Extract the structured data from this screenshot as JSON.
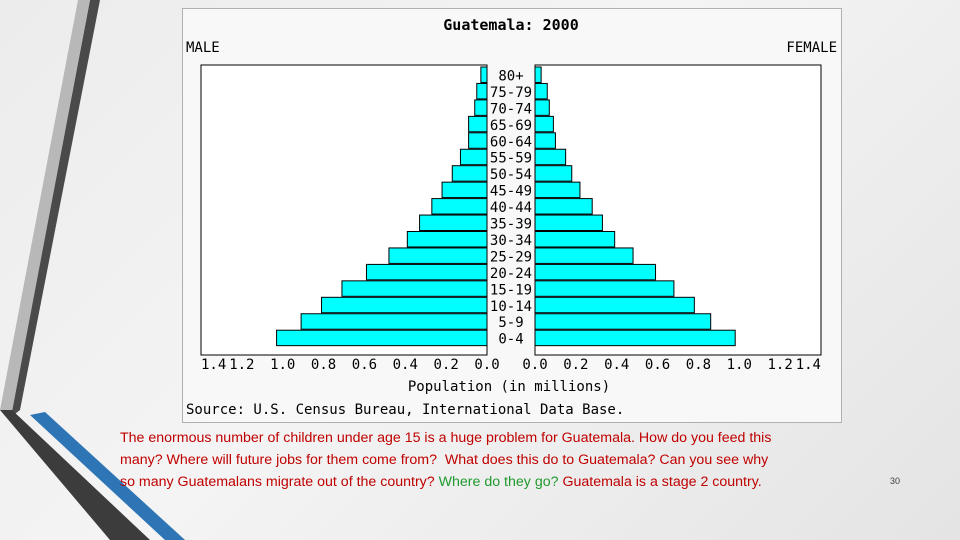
{
  "slide": {
    "caption_lines": [
      [
        {
          "text": "The enormous number of children under age 15 is a huge problem for Guatemala. How do you feed this",
          "color": "red"
        }
      ],
      [
        {
          "text": "many? Where will future jobs for them come from?  What does this do to Guatemala? Can you see why",
          "color": "red"
        }
      ],
      [
        {
          "text": "so many Guatemalans migrate out of the country? ",
          "color": "red"
        },
        {
          "text": "Where do they go? ",
          "color": "green"
        },
        {
          "text": "Guatemala is a stage 2 country.",
          "color": "red"
        }
      ]
    ],
    "page_number": "30",
    "colors": {
      "red": "#c00000",
      "green": "#1f9a2e",
      "bar_fill": "#00ffff",
      "bar_stroke": "#000000",
      "plot_bg": "#ffffff",
      "frame_bg": "#f8f8f8",
      "accent_dark": "#404040",
      "accent_blue": "#2e75b6"
    }
  },
  "chart_data": {
    "type": "bar",
    "orientation": "horizontal",
    "subtype": "population-pyramid",
    "title": "Guatemala: 2000",
    "left_label": "MALE",
    "right_label": "FEMALE",
    "xlabel": "Population (in millions)",
    "source": "Source: U.S. Census Bureau, International Data Base.",
    "categories": [
      "80+",
      "75-79",
      "70-74",
      "65-69",
      "60-64",
      "55-59",
      "50-54",
      "45-49",
      "40-44",
      "35-39",
      "30-34",
      "25-29",
      "20-24",
      "15-19",
      "10-14",
      "5-9",
      "0-4"
    ],
    "series": [
      {
        "name": "MALE",
        "values": [
          0.03,
          0.05,
          0.06,
          0.09,
          0.09,
          0.13,
          0.17,
          0.22,
          0.27,
          0.33,
          0.39,
          0.48,
          0.59,
          0.71,
          0.81,
          0.91,
          1.03
        ]
      },
      {
        "name": "FEMALE",
        "values": [
          0.03,
          0.06,
          0.07,
          0.09,
          0.1,
          0.15,
          0.18,
          0.22,
          0.28,
          0.33,
          0.39,
          0.48,
          0.59,
          0.68,
          0.78,
          0.86,
          0.98
        ]
      }
    ],
    "x_ticks_left": [
      "1.4",
      "1.2",
      "1.0",
      "0.8",
      "0.6",
      "0.4",
      "0.2",
      "0.0"
    ],
    "x_ticks_right": [
      "0.0",
      "0.2",
      "0.4",
      "0.6",
      "0.8",
      "1.0",
      "1.2",
      "1.4"
    ],
    "xlim": [
      0,
      1.4
    ],
    "grid": false,
    "legend": "none"
  }
}
